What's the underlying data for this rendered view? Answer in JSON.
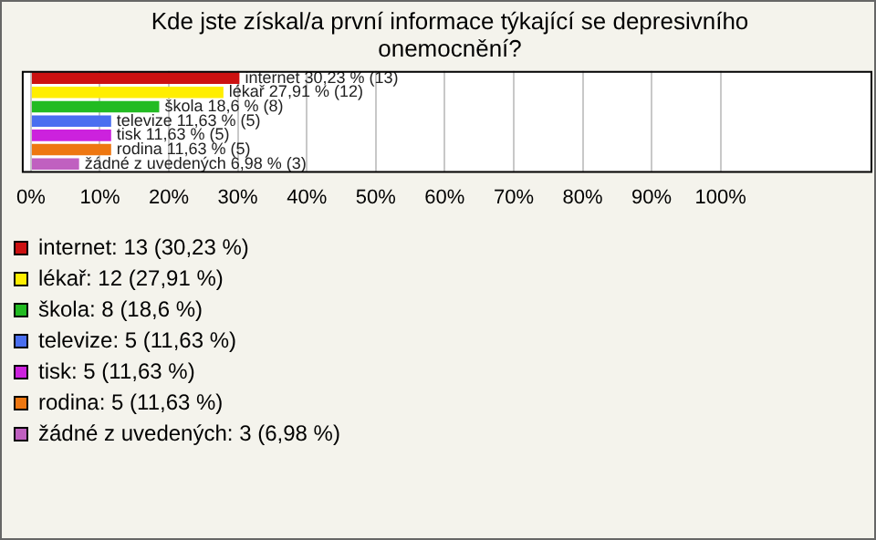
{
  "chart_data": {
    "type": "bar",
    "orientation": "horizontal",
    "stacked": true,
    "title": "Kde jste získal/a první informace týkající se depresivního onemocnění?",
    "categories": [
      null,
      null,
      null,
      null,
      null,
      null,
      null
    ],
    "series": [
      {
        "name": "internet: 13 (30,23 %)",
        "color": "#cc1111",
        "values": [
          30.23,
          null,
          null,
          null,
          null,
          null,
          null
        ],
        "value_labels": [
          "internet 30,23 % (13)",
          null,
          null,
          null,
          null,
          null,
          null
        ]
      },
      {
        "name": "lékař: 12 (27,91 %)",
        "color": "#ffee00",
        "values": [
          null,
          27.91,
          null,
          null,
          null,
          null,
          null
        ],
        "value_labels": [
          null,
          "lékař 27,91 % (12)",
          null,
          null,
          null,
          null,
          null
        ]
      },
      {
        "name": "škola: 8 (18,6 %)",
        "color": "#22bb22",
        "values": [
          null,
          null,
          18.6,
          null,
          null,
          null,
          null
        ],
        "value_labels": [
          null,
          null,
          "škola 18,6 % (8)",
          null,
          null,
          null,
          null
        ]
      },
      {
        "name": "televize: 5 (11,63 %)",
        "color": "#4a6ff0",
        "values": [
          null,
          null,
          null,
          11.63,
          null,
          null,
          null
        ],
        "value_labels": [
          null,
          null,
          null,
          "televize 11,63 % (5)",
          null,
          null,
          null
        ]
      },
      {
        "name": "tisk: 5 (11,63 %)",
        "color": "#cc22dd",
        "values": [
          null,
          null,
          null,
          null,
          11.63,
          null,
          null
        ],
        "value_labels": [
          null,
          null,
          null,
          null,
          "tisk 11,63 % (5)",
          null,
          null
        ]
      },
      {
        "name": "rodina: 5 (11,63 %)",
        "color": "#ee7711",
        "values": [
          null,
          null,
          null,
          null,
          null,
          11.63,
          null
        ],
        "value_labels": [
          null,
          null,
          null,
          null,
          null,
          "rodina 11,63 % (5)",
          null
        ]
      },
      {
        "name": "žádné z uvedených: 3 (6,98 %)",
        "color": "#c060c0",
        "values": [
          null,
          null,
          null,
          null,
          null,
          null,
          6.98
        ],
        "value_labels": [
          null,
          null,
          null,
          null,
          null,
          null,
          "žádné z uvedených 6,98 % (3)"
        ]
      }
    ],
    "xlim": [
      0,
      122
    ],
    "xticks": [
      {
        "value": 0,
        "label": "0%"
      },
      {
        "value": 10,
        "label": "10%"
      },
      {
        "value": 20,
        "label": "20%"
      },
      {
        "value": 30,
        "label": "30%"
      },
      {
        "value": 40,
        "label": "40%"
      },
      {
        "value": 50,
        "label": "50%"
      },
      {
        "value": 60,
        "label": "60%"
      },
      {
        "value": 70,
        "label": "70%"
      },
      {
        "value": 80,
        "label": "80%"
      },
      {
        "value": 90,
        "label": "90%"
      },
      {
        "value": 100,
        "label": "100%"
      }
    ],
    "grid": "x",
    "tick_labels": "x",
    "legend": "bottom"
  }
}
